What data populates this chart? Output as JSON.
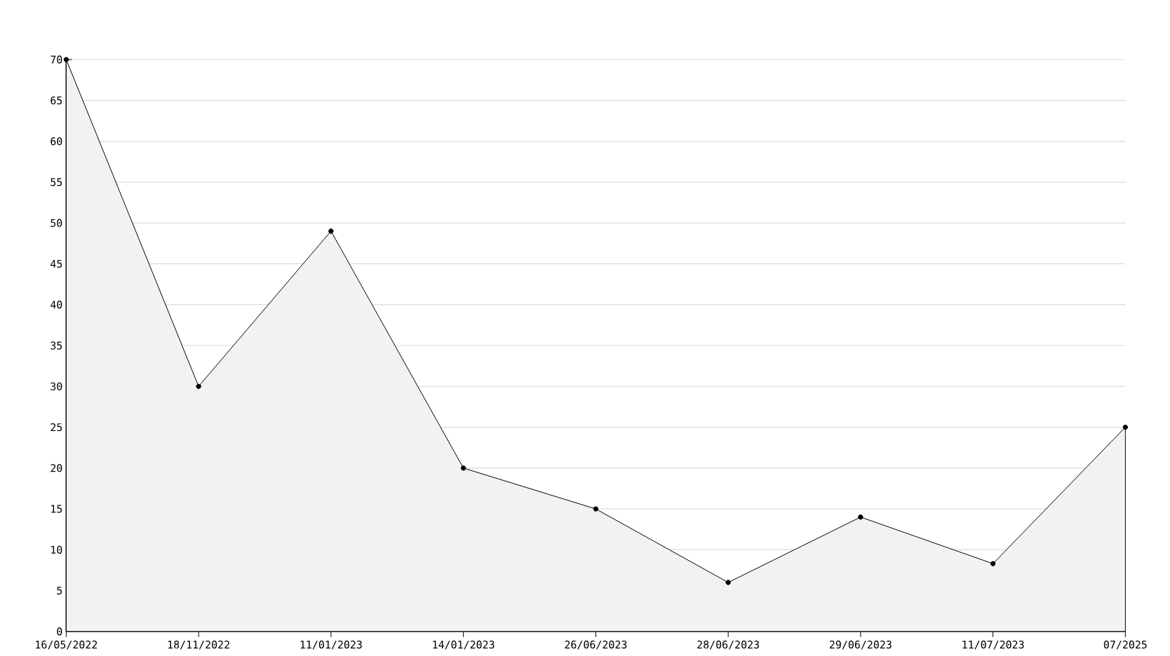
{
  "chart_data": {
    "type": "area",
    "categories": [
      "16/05/2022",
      "18/11/2022",
      "11/01/2023",
      "14/01/2023",
      "26/06/2023",
      "28/06/2023",
      "29/06/2023",
      "11/07/2023",
      "07/2025"
    ],
    "values": [
      70,
      30,
      49,
      20,
      15,
      6,
      14,
      8.3,
      25
    ],
    "color": "#000000",
    "ylim": [
      0,
      70
    ],
    "yticks": [
      0,
      5,
      10,
      15,
      20,
      25,
      30,
      35,
      40,
      45,
      50,
      55,
      60,
      65,
      70
    ],
    "grid": "y",
    "marker": "circle",
    "line_style": "solid"
  }
}
